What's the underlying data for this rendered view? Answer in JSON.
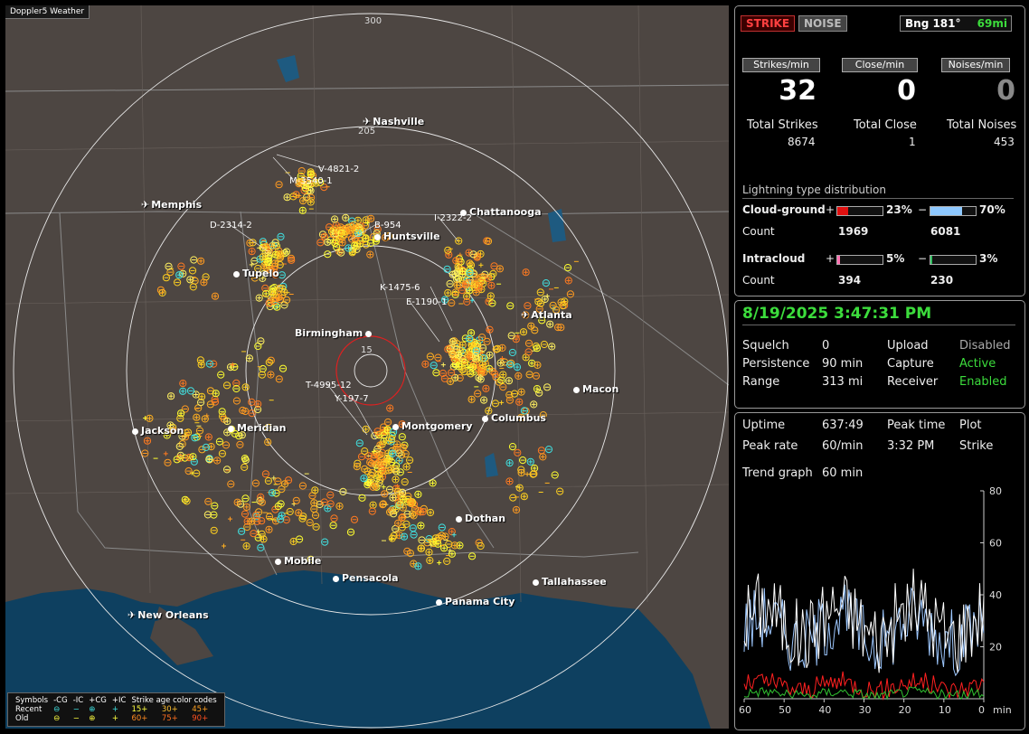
{
  "app": {
    "title": "Doppler5 Weather"
  },
  "map": {
    "ring_labels": [
      "300",
      "205",
      "15"
    ],
    "cities": [
      {
        "name": "Nashville",
        "icon": "airport-icon",
        "airport": true
      },
      {
        "name": "Memphis",
        "icon": "airport-icon",
        "airport": true
      },
      {
        "name": "Chattanooga",
        "icon": "city-dot-icon",
        "airport": false
      },
      {
        "name": "Huntsville",
        "icon": "city-dot-icon",
        "airport": false
      },
      {
        "name": "Tupelo",
        "icon": "city-dot-icon",
        "airport": false
      },
      {
        "name": "Atlanta",
        "icon": "airport-icon",
        "airport": true
      },
      {
        "name": "Birmingham",
        "icon": "city-dot-icon",
        "airport": false
      },
      {
        "name": "Macon",
        "icon": "city-dot-icon",
        "airport": false
      },
      {
        "name": "Jackson",
        "icon": "city-dot-icon",
        "airport": false
      },
      {
        "name": "Meridian",
        "icon": "city-dot-icon",
        "airport": false
      },
      {
        "name": "Montgomery",
        "icon": "city-dot-icon",
        "airport": false
      },
      {
        "name": "Columbus",
        "icon": "city-dot-icon",
        "airport": false
      },
      {
        "name": "Dothan",
        "icon": "city-dot-icon",
        "airport": false
      },
      {
        "name": "Mobile",
        "icon": "city-dot-icon",
        "airport": false
      },
      {
        "name": "Pensacola",
        "icon": "city-dot-icon",
        "airport": false
      },
      {
        "name": "Tallahassee",
        "icon": "city-dot-icon",
        "airport": false
      },
      {
        "name": "Panama City",
        "icon": "city-dot-icon",
        "airport": false
      },
      {
        "name": "New Orleans",
        "icon": "airport-icon",
        "airport": true
      }
    ],
    "storm_labels": [
      "V-4821-2",
      "M-3540-1",
      "D-2314-2",
      "I-2322-2",
      "B-954",
      "K-1475-6",
      "E-1190-1",
      "T-4995-12",
      "Y-197-7"
    ],
    "legend": {
      "row_header": "Symbols",
      "cols": [
        "-CG",
        "-IC",
        "+CG",
        "+IC"
      ],
      "age_header": "Strike age color codes",
      "recent": "Recent",
      "old": "Old",
      "recent_ages": [
        "15+",
        "30+",
        "45+"
      ],
      "old_ages": [
        "60+",
        "75+",
        "90+"
      ],
      "symbols": [
        "⊖",
        "−",
        "⊕",
        "+"
      ]
    },
    "colors": {
      "land": "#4d4642",
      "water": "#0e4060",
      "strike_recent": "#ffff30",
      "strike_old": "#ff9a20",
      "strike_ic": "#40e0e0"
    }
  },
  "status": {
    "strike_btn": "STRIKE",
    "noise_btn": "NOISE",
    "bearing": "Bng 181°",
    "distance": "69mi"
  },
  "rates": {
    "strikes_label": "Strikes/min",
    "close_label": "Close/min",
    "noises_label": "Noises/min",
    "strikes_value": "32",
    "close_value": "0",
    "noises_value": "0",
    "total_strikes_label": "Total Strikes",
    "total_close_label": "Total Close",
    "total_noises_label": "Total Noises",
    "total_strikes": "8674",
    "total_close": "1",
    "total_noises": "453"
  },
  "distribution": {
    "title": "Lightning type distribution",
    "cg_label": "Cloud-ground",
    "ic_label": "Intracloud",
    "count_label": "Count",
    "plus": "+",
    "minus": "−",
    "cg_pos_pct": "23%",
    "cg_neg_pct": "70%",
    "cg_pos_count": "1969",
    "cg_neg_count": "6081",
    "ic_pos_pct": "5%",
    "ic_neg_pct": "3%",
    "ic_pos_count": "394",
    "ic_neg_count": "230",
    "fractions": {
      "cg_pos": 0.23,
      "cg_neg": 0.7,
      "ic_pos": 0.05,
      "ic_neg": 0.03
    }
  },
  "settings": {
    "datetime": "8/19/2025 3:47:31 PM",
    "squelch_label": "Squelch",
    "squelch": "0",
    "persistence_label": "Persistence",
    "persistence": "90 min",
    "range_label": "Range",
    "range": "313 mi",
    "upload_label": "Upload",
    "upload": "Disabled",
    "capture_label": "Capture",
    "capture": "Active",
    "receiver_label": "Receiver",
    "receiver": "Enabled"
  },
  "stats": {
    "uptime_label": "Uptime",
    "uptime": "637:49",
    "peak_time_label": "Peak time",
    "peak_time": "3:32 PM",
    "plot_label": "Plot",
    "plot": "Strike",
    "peak_rate_label": "Peak rate",
    "peak_rate": "60/min",
    "trend_label": "Trend graph",
    "trend": "60 min"
  },
  "trend_chart": {
    "y_ticks": [
      "80",
      "60",
      "40",
      "20"
    ],
    "x_ticks": [
      "60",
      "50",
      "40",
      "30",
      "20",
      "10",
      "0"
    ],
    "x_unit": "min",
    "colors": {
      "strikes": "#ffffff",
      "secondary": "#9ec8ff",
      "noise": "#ff2020",
      "close": "#30c030"
    }
  }
}
